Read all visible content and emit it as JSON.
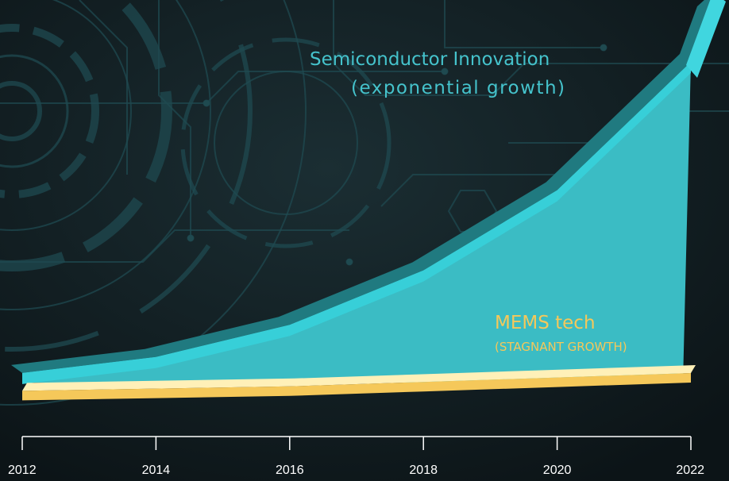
{
  "chart_data": {
    "type": "area",
    "title": "",
    "xlabel": "",
    "ylabel": "",
    "x": [
      2012,
      2014,
      2016,
      2018,
      2020,
      2022
    ],
    "x_tick_labels": [
      "2012",
      "2014",
      "2016",
      "2018",
      "2020",
      "2022"
    ],
    "xlim": [
      2012,
      2022
    ],
    "ylim": [
      0,
      100
    ],
    "grid": false,
    "series": [
      {
        "name": "Semiconductor Innovation",
        "subtitle": "(exponential growth)",
        "trend": "exponential growth",
        "color": "#3bbcc4",
        "x": [
          2012,
          2014,
          2016,
          2018,
          2020,
          2022
        ],
        "values": [
          3,
          8,
          18,
          35,
          60,
          100
        ]
      },
      {
        "name": "MEMS tech",
        "subtitle": "(STAGNANT GROWTH)",
        "trend": "stagnant growth",
        "color": "#f5c85a",
        "x": [
          2012,
          2014,
          2016,
          2018,
          2020,
          2022
        ],
        "values": [
          1,
          1.5,
          2,
          3,
          4,
          5
        ]
      }
    ]
  },
  "colors": {
    "background": "#0f1a1e",
    "circuit_lines": "#1f4a50",
    "axis": "#ffffff"
  }
}
